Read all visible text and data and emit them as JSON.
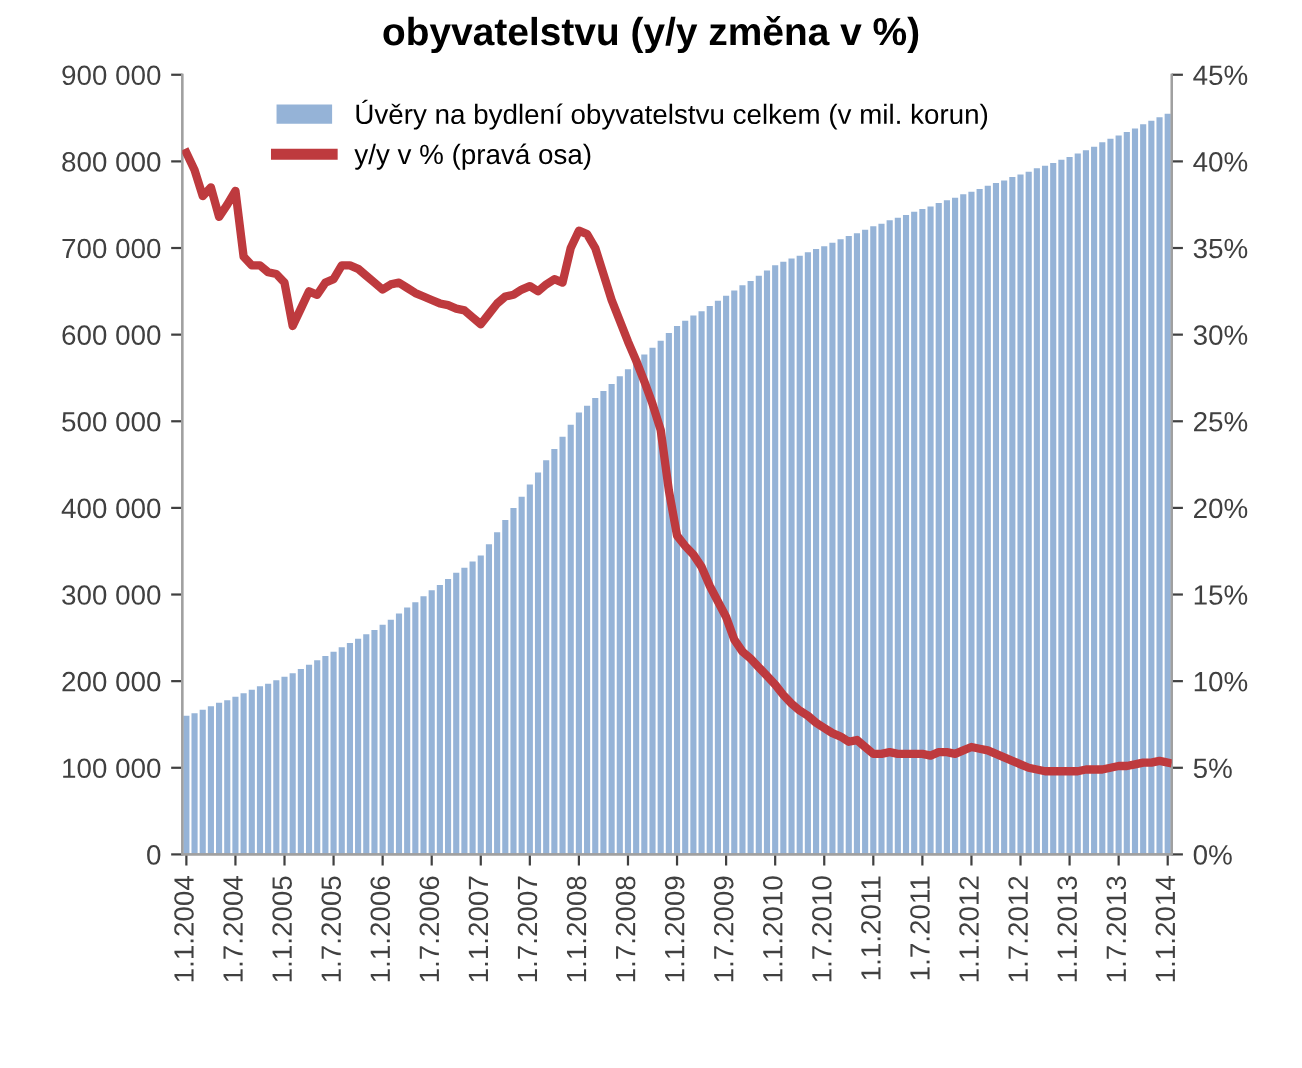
{
  "chart_data": {
    "type": "bar",
    "title": "obyvatelstvu (y/y změna v %)",
    "categories": [
      "1.1.2004",
      null,
      null,
      null,
      null,
      null,
      "1.7.2004",
      null,
      null,
      null,
      null,
      null,
      "1.1.2005",
      null,
      null,
      null,
      null,
      null,
      "1.7.2005",
      null,
      null,
      null,
      null,
      null,
      "1.1.2006",
      null,
      null,
      null,
      null,
      null,
      "1.7.2006",
      null,
      null,
      null,
      null,
      null,
      "1.1.2007",
      null,
      null,
      null,
      null,
      null,
      "1.7.2007",
      null,
      null,
      null,
      null,
      null,
      "1.1.2008",
      null,
      null,
      null,
      null,
      null,
      "1.7.2008",
      null,
      null,
      null,
      null,
      null,
      "1.1.2009",
      null,
      null,
      null,
      null,
      null,
      "1.7.2009",
      null,
      null,
      null,
      null,
      null,
      "1.1.2010",
      null,
      null,
      null,
      null,
      null,
      "1.7.2010",
      null,
      null,
      null,
      null,
      null,
      "1.1.2011",
      null,
      null,
      null,
      null,
      null,
      "1.7.2011",
      null,
      null,
      null,
      null,
      null,
      "1.1.2012",
      null,
      null,
      null,
      null,
      null,
      "1.7.2012",
      null,
      null,
      null,
      null,
      null,
      "1.1.2013",
      null,
      null,
      null,
      null,
      null,
      "1.7.2013",
      null,
      null,
      null,
      null,
      null,
      "1.1.2014"
    ],
    "series": [
      {
        "name": "Úvěry na bydlení obyvatelstvu celkem (v mil. korun)",
        "color": "#95b3d7",
        "values": [
          160000,
          163000,
          167000,
          171000,
          175000,
          178000,
          182000,
          186000,
          190000,
          194000,
          197000,
          201000,
          205000,
          209000,
          214000,
          219000,
          224000,
          229000,
          234000,
          239000,
          244000,
          249000,
          254000,
          259000,
          265000,
          271000,
          278000,
          285000,
          291000,
          298000,
          305000,
          311000,
          318000,
          325000,
          331000,
          338000,
          345000,
          358000,
          372000,
          386000,
          400000,
          413000,
          427000,
          441000,
          455000,
          468000,
          482000,
          496000,
          510000,
          518000,
          527000,
          535000,
          543000,
          552000,
          560000,
          568000,
          577000,
          585000,
          593000,
          602000,
          610000,
          616000,
          622000,
          627000,
          633000,
          639000,
          645000,
          651000,
          657000,
          662000,
          668000,
          674000,
          680000,
          684000,
          688000,
          691000,
          695000,
          699000,
          702000,
          706000,
          710000,
          714000,
          717000,
          721000,
          725000,
          728000,
          732000,
          735000,
          738000,
          742000,
          745000,
          748000,
          752000,
          755000,
          758000,
          762000,
          765000,
          768000,
          772000,
          775000,
          778000,
          782000,
          785000,
          788000,
          792000,
          795000,
          798000,
          802000,
          805000,
          809000,
          813000,
          817000,
          822000,
          826000,
          830000,
          834000,
          838000,
          843000,
          847000,
          851000,
          855000
        ]
      },
      {
        "name": "y/y v % (pravá osa)",
        "type": "line",
        "axis": "y2",
        "color": "#be3a3e",
        "values": [
          40.5,
          39.5,
          38.0,
          38.5,
          36.8,
          37.5,
          38.3,
          34.5,
          34.0,
          34.0,
          33.6,
          33.5,
          33.0,
          30.5,
          31.5,
          32.5,
          32.3,
          33.0,
          33.2,
          34.0,
          34.0,
          33.8,
          33.4,
          33.0,
          32.6,
          32.9,
          33.0,
          32.7,
          32.4,
          32.2,
          32.0,
          31.8,
          31.7,
          31.5,
          31.4,
          31.0,
          30.6,
          31.2,
          31.8,
          32.2,
          32.3,
          32.6,
          32.8,
          32.5,
          32.9,
          33.2,
          33.0,
          35.0,
          36.0,
          35.8,
          35.0,
          33.5,
          32.0,
          30.8,
          29.6,
          28.5,
          27.3,
          26.0,
          24.5,
          21.0,
          18.4,
          17.8,
          17.3,
          16.6,
          15.5,
          14.6,
          13.7,
          12.4,
          11.7,
          11.3,
          10.8,
          10.3,
          9.8,
          9.2,
          8.7,
          8.3,
          8.0,
          7.6,
          7.3,
          7.0,
          6.8,
          6.5,
          6.6,
          6.2,
          5.8,
          5.8,
          5.9,
          5.8,
          5.8,
          5.8,
          5.8,
          5.7,
          5.9,
          5.9,
          5.8,
          6.0,
          6.2,
          6.1,
          6.0,
          5.8,
          5.6,
          5.4,
          5.2,
          5.0,
          4.9,
          4.8,
          4.8,
          4.8,
          4.8,
          4.8,
          4.9,
          4.9,
          4.9,
          5.0,
          5.1,
          5.1,
          5.2,
          5.3,
          5.3,
          5.4,
          5.3
        ]
      }
    ],
    "ylim": [
      0,
      900000
    ],
    "yticks": [
      {
        "value": 0,
        "label": "0"
      },
      {
        "value": 100000,
        "label": "100 000"
      },
      {
        "value": 200000,
        "label": "200 000"
      },
      {
        "value": 300000,
        "label": "300 000"
      },
      {
        "value": 400000,
        "label": "400 000"
      },
      {
        "value": 500000,
        "label": "500 000"
      },
      {
        "value": 600000,
        "label": "600 000"
      },
      {
        "value": 700000,
        "label": "700 000"
      },
      {
        "value": 800000,
        "label": "800 000"
      },
      {
        "value": 900000,
        "label": "900 000"
      }
    ],
    "y2lim": [
      0,
      45
    ],
    "y2ticks": [
      {
        "value": 0,
        "label": "0%"
      },
      {
        "value": 5,
        "label": "5%"
      },
      {
        "value": 10,
        "label": "10%"
      },
      {
        "value": 15,
        "label": "15%"
      },
      {
        "value": 20,
        "label": "20%"
      },
      {
        "value": 25,
        "label": "25%"
      },
      {
        "value": 30,
        "label": "30%"
      },
      {
        "value": 35,
        "label": "35%"
      },
      {
        "value": 40,
        "label": "40%"
      },
      {
        "value": 45,
        "label": "45%"
      }
    ],
    "grid": false,
    "legend": "top",
    "line_style": "solid",
    "marker": "none"
  }
}
